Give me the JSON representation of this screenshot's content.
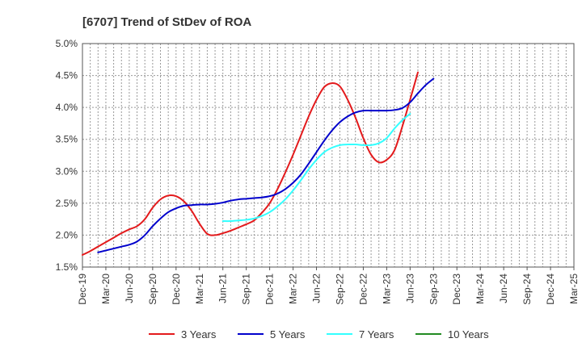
{
  "chart_data": {
    "type": "line",
    "title": "[6707]  Trend of StDev of ROA",
    "xlabel": "",
    "ylabel": "",
    "ylim": [
      1.5,
      5.0
    ],
    "y_ticks": [
      "1.5%",
      "2.0%",
      "2.5%",
      "3.0%",
      "3.5%",
      "4.0%",
      "4.5%",
      "5.0%"
    ],
    "y_tick_values": [
      1.5,
      2.0,
      2.5,
      3.0,
      3.5,
      4.0,
      4.5,
      5.0
    ],
    "x_ticks": [
      "Dec-19",
      "Mar-20",
      "Jun-20",
      "Sep-20",
      "Dec-20",
      "Mar-21",
      "Jun-21",
      "Sep-21",
      "Dec-21",
      "Mar-22",
      "Jun-22",
      "Sep-22",
      "Dec-22",
      "Mar-23",
      "Jun-23",
      "Sep-23",
      "Dec-23",
      "Mar-24",
      "Jun-24",
      "Sep-24",
      "Dec-24",
      "Mar-25"
    ],
    "grid": true,
    "legend_position": "bottom",
    "series": [
      {
        "name": "3 Years",
        "color": "#e31a1c",
        "start_index": 0,
        "values": [
          1.69,
          1.75,
          1.82,
          1.89,
          1.96,
          2.03,
          2.09,
          2.14,
          2.25,
          2.43,
          2.56,
          2.62,
          2.61,
          2.53,
          2.38,
          2.18,
          2.02,
          2.0,
          2.03,
          2.07,
          2.12,
          2.17,
          2.23,
          2.35,
          2.5,
          2.72,
          2.98,
          3.26,
          3.56,
          3.86,
          4.12,
          4.32,
          4.38,
          4.33,
          4.12,
          3.84,
          3.52,
          3.26,
          3.14,
          3.18,
          3.33,
          3.7,
          4.12,
          4.55
        ]
      },
      {
        "name": "5 Years",
        "color": "#0000cc",
        "start_index": 2,
        "values": [
          1.73,
          1.76,
          1.79,
          1.82,
          1.85,
          1.9,
          2.0,
          2.14,
          2.26,
          2.36,
          2.42,
          2.46,
          2.47,
          2.48,
          2.48,
          2.49,
          2.51,
          2.54,
          2.56,
          2.57,
          2.58,
          2.59,
          2.61,
          2.65,
          2.72,
          2.82,
          2.95,
          3.12,
          3.3,
          3.48,
          3.64,
          3.77,
          3.86,
          3.92,
          3.95,
          3.95,
          3.95,
          3.95,
          3.96,
          3.99,
          4.08,
          4.22,
          4.35,
          4.45
        ]
      },
      {
        "name": "7 Years",
        "color": "#33ffff",
        "start_index": 18,
        "values": [
          2.22,
          2.22,
          2.23,
          2.24,
          2.26,
          2.3,
          2.36,
          2.45,
          2.56,
          2.7,
          2.86,
          3.03,
          3.18,
          3.3,
          3.37,
          3.41,
          3.42,
          3.42,
          3.41,
          3.41,
          3.44,
          3.52,
          3.67,
          3.8,
          3.9
        ]
      },
      {
        "name": "10 Years",
        "color": "#228b22",
        "start_index": 0,
        "values": []
      }
    ]
  }
}
